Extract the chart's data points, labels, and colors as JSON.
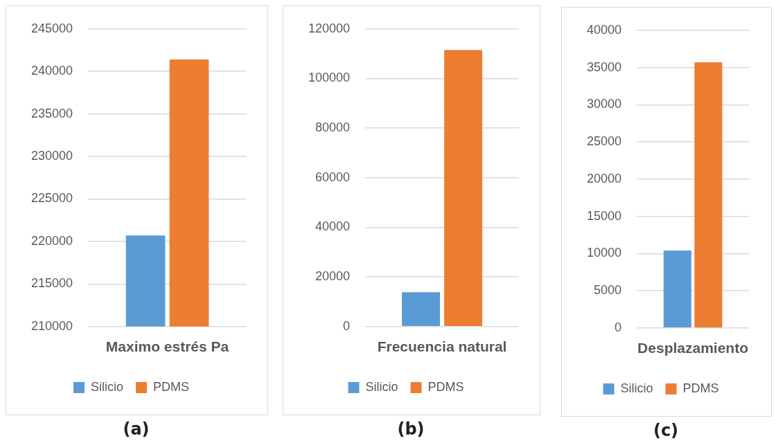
{
  "chart_data": [
    {
      "type": "bar",
      "categories": [
        "Maximo estrés Pa"
      ],
      "series": [
        {
          "name": "Silicio",
          "color": "#5b9bd5",
          "values": [
            220700
          ]
        },
        {
          "name": "PDMS",
          "color": "#ed7d31",
          "values": [
            241400
          ]
        }
      ],
      "ylim": [
        210000,
        245000
      ],
      "yticks": [
        210000,
        215000,
        220000,
        225000,
        230000,
        235000,
        240000,
        245000
      ],
      "grid": "y",
      "legend": "bottom",
      "annotations": [
        "(a)"
      ]
    },
    {
      "type": "bar",
      "categories": [
        "Frecuencia natural"
      ],
      "series": [
        {
          "name": "Silicio",
          "color": "#5b9bd5",
          "values": [
            13800
          ]
        },
        {
          "name": "PDMS",
          "color": "#ed7d31",
          "values": [
            111500
          ]
        }
      ],
      "ylim": [
        0,
        120000
      ],
      "yticks": [
        0,
        20000,
        40000,
        60000,
        80000,
        100000,
        120000
      ],
      "grid": "y",
      "legend": "bottom",
      "annotations": [
        "(b)"
      ]
    },
    {
      "type": "bar",
      "categories": [
        "Desplazamiento"
      ],
      "series": [
        {
          "name": "Silicio",
          "color": "#5b9bd5",
          "values": [
            10400
          ]
        },
        {
          "name": "PDMS",
          "color": "#ed7d31",
          "values": [
            35700
          ]
        }
      ],
      "ylim": [
        0,
        40000
      ],
      "yticks": [
        0,
        5000,
        10000,
        15000,
        20000,
        25000,
        30000,
        35000,
        40000
      ],
      "grid": "y",
      "legend": "bottom",
      "annotations": [
        "(c)"
      ]
    }
  ]
}
